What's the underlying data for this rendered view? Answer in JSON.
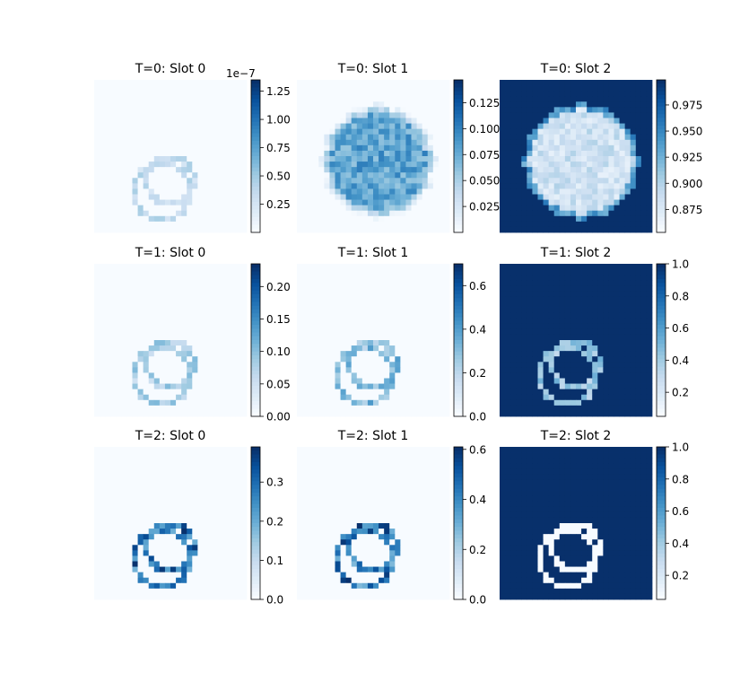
{
  "chart_data": [
    {
      "type": "heatmap",
      "title": "T=0: Slot 0",
      "cmap": "Blues",
      "colorbar": {
        "ticks": [
          0.25,
          0.5,
          0.75,
          1.0,
          1.25
        ],
        "tick_labels": [
          "0.25",
          "0.50",
          "0.75",
          "1.00",
          "1.25"
        ],
        "range": [
          0.0,
          1.35
        ],
        "offset_label": "1e−7"
      },
      "pattern": "ring",
      "values_description": "",
      "ring_level": 0.35,
      "inner_level": 0.0,
      "bg_level": 0.0
    },
    {
      "type": "heatmap",
      "title": "T=0: Slot 1",
      "cmap": "Blues",
      "colorbar": {
        "ticks": [
          0.025,
          0.05,
          0.075,
          0.1,
          0.125
        ],
        "tick_labels": [
          "0.025",
          "0.050",
          "0.075",
          "0.100",
          "0.125"
        ],
        "range": [
          0.0,
          0.147
        ],
        "offset_label": ""
      },
      "pattern": "disk",
      "ring_level": 0.7,
      "inner_level": 0.7,
      "bg_level": 0.0
    },
    {
      "type": "heatmap",
      "title": "T=0: Slot 2",
      "cmap": "Blues",
      "colorbar": {
        "ticks": [
          0.875,
          0.9,
          0.925,
          0.95,
          0.975
        ],
        "tick_labels": [
          "0.875",
          "0.900",
          "0.925",
          "0.950",
          "0.975"
        ],
        "range": [
          0.853,
          0.999
        ],
        "offset_label": ""
      },
      "pattern": "disk-inverse",
      "ring_level": 0.2,
      "inner_level": 0.2,
      "bg_level": 1.0
    },
    {
      "type": "heatmap",
      "title": "T=1: Slot 0",
      "cmap": "Blues",
      "colorbar": {
        "ticks": [
          0.0,
          0.05,
          0.1,
          0.15,
          0.2
        ],
        "tick_labels": [
          "0.00",
          "0.05",
          "0.10",
          "0.15",
          "0.20"
        ],
        "range": [
          0.0,
          0.235
        ],
        "offset_label": ""
      },
      "pattern": "ring",
      "ring_level": 0.45,
      "inner_level": 0.0,
      "bg_level": 0.0
    },
    {
      "type": "heatmap",
      "title": "T=1: Slot 1",
      "cmap": "Blues",
      "colorbar": {
        "ticks": [
          0.0,
          0.2,
          0.4,
          0.6
        ],
        "tick_labels": [
          "0.0",
          "0.2",
          "0.4",
          "0.6"
        ],
        "range": [
          0.0,
          0.7
        ],
        "offset_label": ""
      },
      "pattern": "ring",
      "ring_level": 0.6,
      "inner_level": 0.0,
      "bg_level": 0.0
    },
    {
      "type": "heatmap",
      "title": "T=1: Slot 2",
      "cmap": "Blues",
      "colorbar": {
        "ticks": [
          0.2,
          0.4,
          0.6,
          0.8,
          1.0
        ],
        "tick_labels": [
          "0.2",
          "0.4",
          "0.6",
          "0.8",
          "1.0"
        ],
        "range": [
          0.05,
          1.0
        ],
        "offset_label": ""
      },
      "pattern": "ring-inverse",
      "ring_level": 0.25,
      "inner_level": 1.0,
      "bg_level": 1.0
    },
    {
      "type": "heatmap",
      "title": "T=2: Slot 0",
      "cmap": "Blues",
      "colorbar": {
        "ticks": [
          0.0,
          0.1,
          0.2,
          0.3
        ],
        "tick_labels": [
          "0.0",
          "0.1",
          "0.2",
          "0.3"
        ],
        "range": [
          0.0,
          0.39
        ],
        "offset_label": ""
      },
      "pattern": "ring",
      "ring_level": 1.0,
      "inner_level": 0.0,
      "bg_level": 0.0
    },
    {
      "type": "heatmap",
      "title": "T=2: Slot 1",
      "cmap": "Blues",
      "colorbar": {
        "ticks": [
          0.0,
          0.2,
          0.4,
          0.6
        ],
        "tick_labels": [
          "0.0",
          "0.2",
          "0.4",
          "0.6"
        ],
        "range": [
          0.0,
          0.61
        ],
        "offset_label": ""
      },
      "pattern": "ring",
      "ring_level": 1.0,
      "inner_level": 0.0,
      "bg_level": 0.0
    },
    {
      "type": "heatmap",
      "title": "T=2: Slot 2",
      "cmap": "Blues",
      "colorbar": {
        "ticks": [
          0.2,
          0.4,
          0.6,
          0.8,
          1.0
        ],
        "tick_labels": [
          "0.2",
          "0.4",
          "0.6",
          "0.8",
          "1.0"
        ],
        "range": [
          0.05,
          1.0
        ],
        "offset_label": ""
      },
      "pattern": "ring-inverse",
      "ring_level": 0.0,
      "inner_level": 1.0,
      "bg_level": 1.0
    }
  ]
}
